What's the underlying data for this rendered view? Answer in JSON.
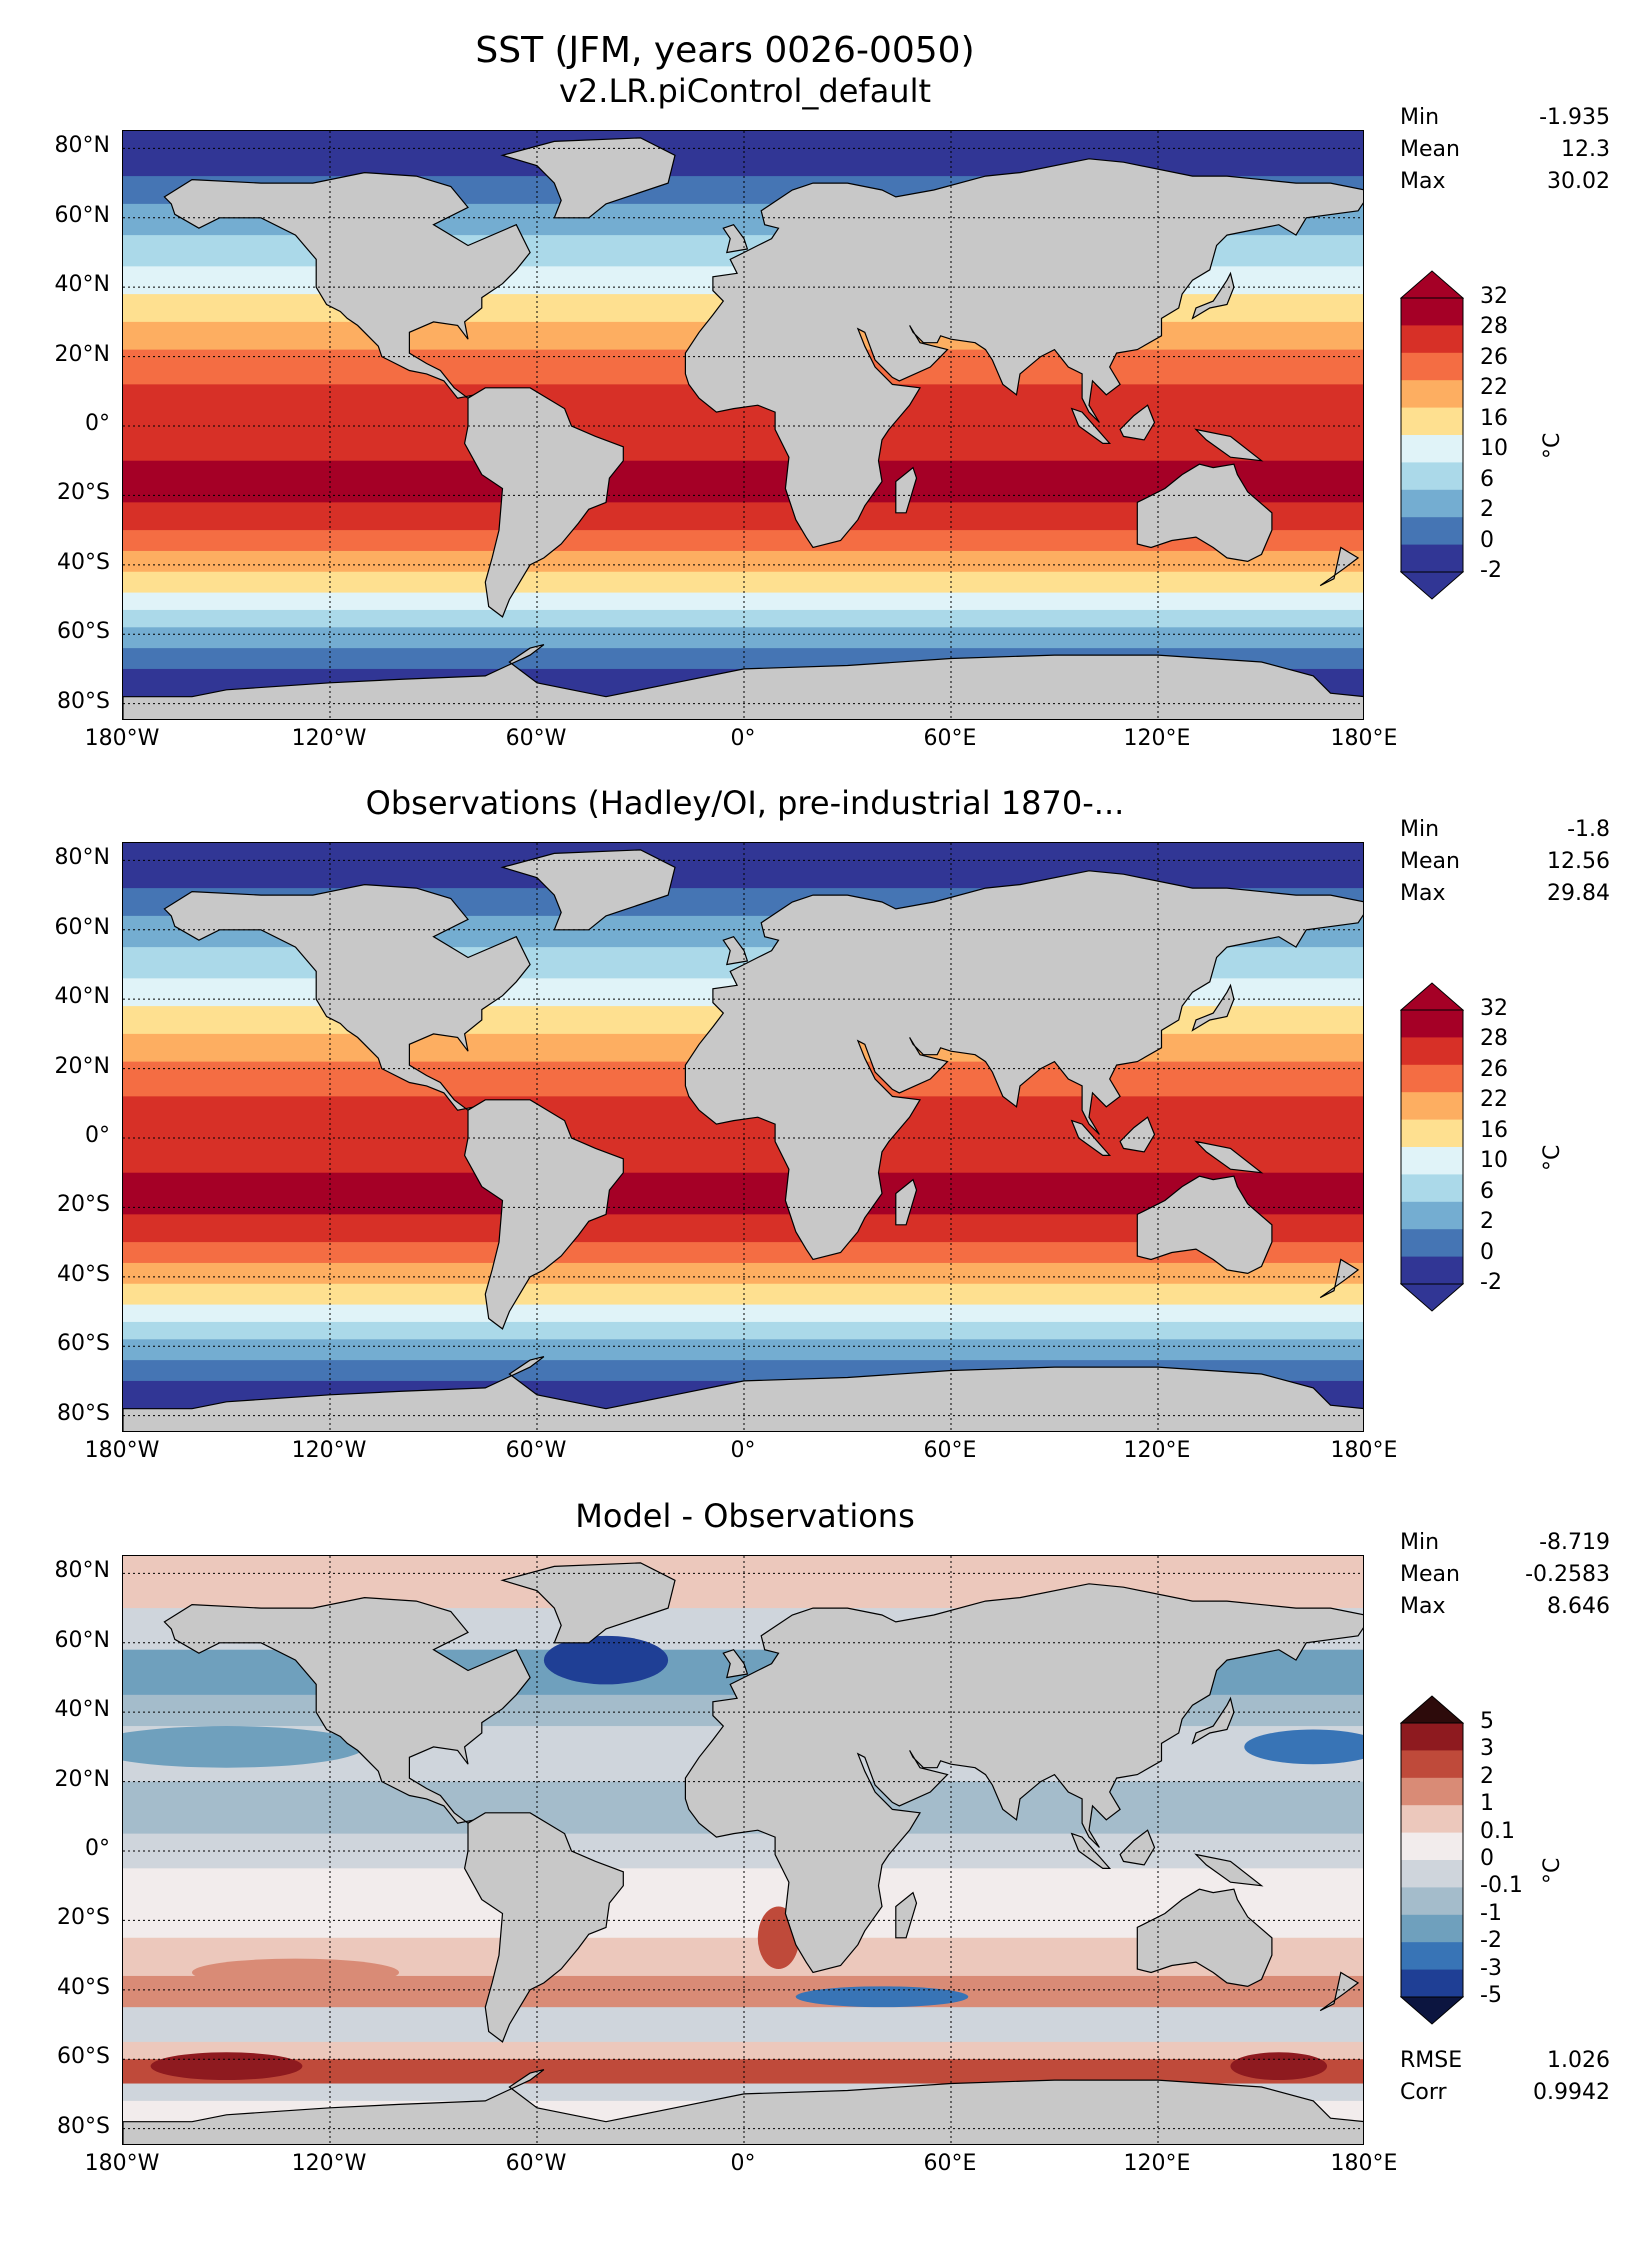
{
  "suptitle": "SST (JFM, years 0026-0050)",
  "lat_labels": [
    "80°N",
    "60°N",
    "40°N",
    "20°N",
    "0°",
    "20°S",
    "40°S",
    "60°S",
    "80°S"
  ],
  "lon_labels": [
    "180°W",
    "120°W",
    "60°W",
    "0°",
    "60°E",
    "120°E",
    "180°E"
  ],
  "panels": [
    {
      "title": "v2.LR.piControl_default",
      "stats": [
        {
          "label": "Min",
          "value": "-1.935"
        },
        {
          "label": "Mean",
          "value": "12.3"
        },
        {
          "label": "Max",
          "value": "30.02"
        }
      ],
      "colorbar": {
        "ticks": [
          "32",
          "28",
          "26",
          "22",
          "16",
          "10",
          "6",
          "2",
          "0",
          "-2"
        ],
        "colors": [
          "#a50026",
          "#d73027",
          "#f46d43",
          "#fdae61",
          "#fee090",
          "#e0f3f8",
          "#abd9e9",
          "#74add1",
          "#4575b4",
          "#313695"
        ],
        "unit": "°C"
      }
    },
    {
      "title": "Observations (Hadley/OI, pre-industrial 1870-...",
      "stats": [
        {
          "label": "Min",
          "value": "-1.8"
        },
        {
          "label": "Mean",
          "value": "12.56"
        },
        {
          "label": "Max",
          "value": "29.84"
        }
      ],
      "colorbar": {
        "ticks": [
          "32",
          "28",
          "26",
          "22",
          "16",
          "10",
          "6",
          "2",
          "0",
          "-2"
        ],
        "colors": [
          "#a50026",
          "#d73027",
          "#f46d43",
          "#fdae61",
          "#fee090",
          "#e0f3f8",
          "#abd9e9",
          "#74add1",
          "#4575b4",
          "#313695"
        ],
        "unit": "°C"
      }
    },
    {
      "title": "Model - Observations",
      "stats": [
        {
          "label": "Min",
          "value": "-8.719"
        },
        {
          "label": "Mean",
          "value": "-0.2583"
        },
        {
          "label": "Max",
          "value": "8.646"
        }
      ],
      "extra_stats": [
        {
          "label": "RMSE",
          "value": "1.026"
        },
        {
          "label": "Corr",
          "value": "0.9942"
        }
      ],
      "colorbar": {
        "ticks": [
          "5",
          "3",
          "2",
          "1",
          "0.1",
          "0",
          "-0.1",
          "-1",
          "-2",
          "-3",
          "-5"
        ],
        "colors": [
          "#2d0b0b",
          "#8e1a1f",
          "#bf4a3a",
          "#d98b76",
          "#ecc8bc",
          "#f2ecec",
          "#cfd5dc",
          "#a4bccb",
          "#6fa0bd",
          "#3874b6",
          "#1f3f95",
          "#0c1540"
        ],
        "unit": "°C"
      }
    }
  ]
}
